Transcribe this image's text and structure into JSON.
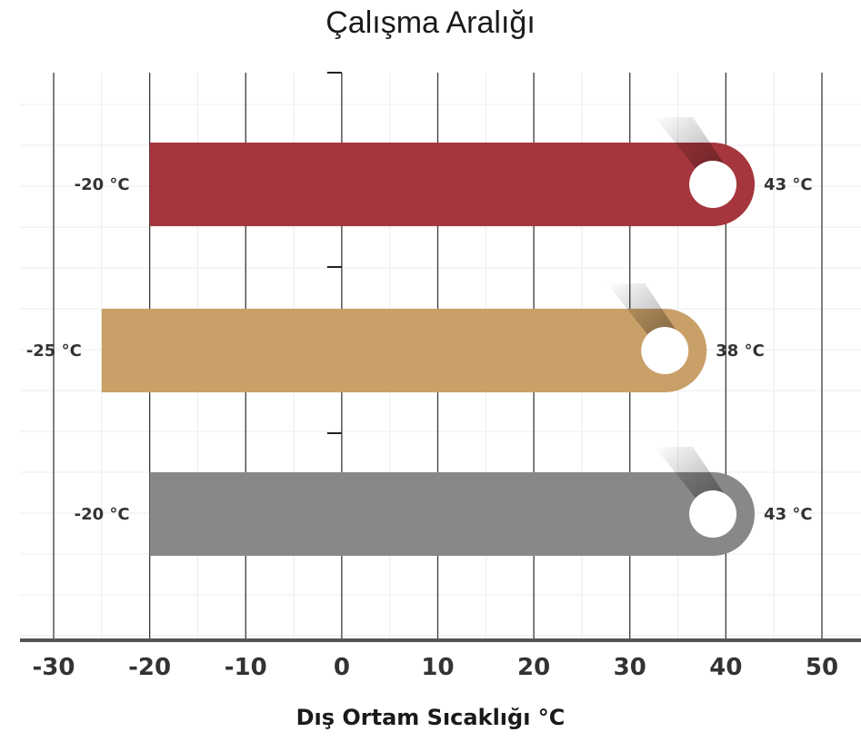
{
  "chart_data": {
    "type": "bar",
    "title": "Çalışma Aralığı",
    "xlabel": "Dış Ortam Sıcaklığı °C",
    "ylabel": "",
    "xlim": [
      -30,
      50
    ],
    "x_ticks": [
      "-30",
      "-20",
      "-10",
      "0",
      "10",
      "20",
      "30",
      "40",
      "50"
    ],
    "grid": true,
    "series": [
      {
        "min": -20,
        "max": 43,
        "min_label": "-20 °C",
        "max_label": "43 °C",
        "color": "#a5363d"
      },
      {
        "min": -25,
        "max": 38,
        "min_label": "-25 °C",
        "max_label": "38 °C",
        "color": "#c9a068"
      },
      {
        "min": -20,
        "max": 43,
        "min_label": "-20 °C",
        "max_label": "43 °C",
        "color": "#888888"
      }
    ]
  }
}
